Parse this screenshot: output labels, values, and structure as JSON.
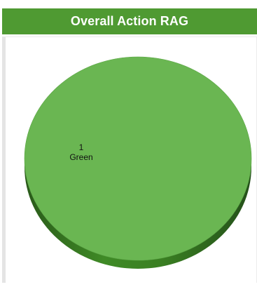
{
  "header": {
    "title": "Overall Action RAG"
  },
  "chart_data": {
    "type": "pie",
    "title": "Overall Action RAG",
    "slices": [
      {
        "label": "Green",
        "value": 1,
        "color": "#6ab652"
      }
    ],
    "style": "3d"
  }
}
